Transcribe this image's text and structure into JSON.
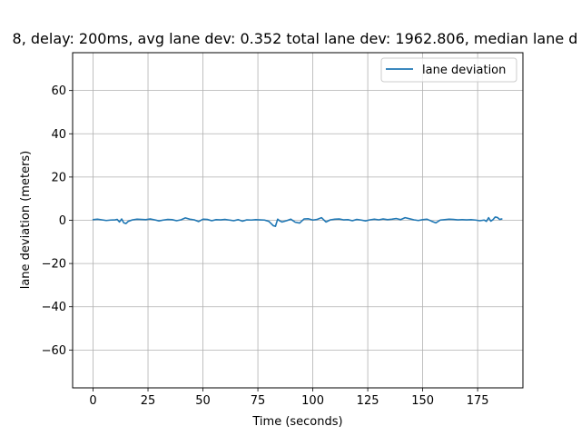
{
  "chart_data": {
    "type": "line",
    "title": "8, delay: 200ms, avg lane dev: 0.352 total lane dev: 1962.806, median lane d",
    "xlabel": "Time (seconds)",
    "ylabel": "lane deviation (meters)",
    "xlim": [
      -9.3,
      195.6
    ],
    "ylim": [
      -77.5,
      77.5
    ],
    "xticks": [
      0,
      25,
      50,
      75,
      100,
      125,
      150,
      175
    ],
    "yticks": [
      -60,
      -40,
      -20,
      0,
      20,
      40,
      60
    ],
    "xtick_labels": [
      "0",
      "25",
      "50",
      "75",
      "100",
      "125",
      "150",
      "175"
    ],
    "ytick_labels": [
      "−60",
      "−40",
      "−20",
      "0",
      "20",
      "40",
      "60"
    ],
    "grid": true,
    "legend_position": "top-right",
    "line_color": "#1f77b4",
    "series": [
      {
        "name": "lane deviation",
        "x": [
          0,
          2,
          4,
          6,
          8,
          10,
          11,
          12,
          13,
          14,
          15,
          16,
          18,
          20,
          22,
          24,
          26,
          28,
          30,
          32,
          34,
          36,
          38,
          40,
          42,
          44,
          46,
          48,
          50,
          52,
          54,
          56,
          58,
          60,
          62,
          64,
          66,
          68,
          70,
          72,
          74,
          76,
          78,
          80,
          82,
          83,
          84,
          85,
          86,
          88,
          90,
          92,
          94,
          96,
          98,
          100,
          102,
          104,
          106,
          108,
          110,
          112,
          114,
          116,
          118,
          120,
          122,
          124,
          126,
          128,
          130,
          132,
          134,
          136,
          138,
          140,
          142,
          144,
          146,
          148,
          150,
          152,
          154,
          156,
          158,
          160,
          162,
          164,
          166,
          168,
          170,
          172,
          174,
          176,
          178,
          179,
          180,
          181,
          182,
          183,
          184,
          185,
          186
        ],
        "y": [
          0.3,
          0.5,
          0.2,
          -0.1,
          0.1,
          0.2,
          0.4,
          -0.8,
          0.6,
          -1.2,
          -1.5,
          -0.5,
          0.2,
          0.5,
          0.4,
          0.3,
          0.6,
          0.2,
          -0.3,
          0.1,
          0.4,
          0.3,
          -0.2,
          0.2,
          1.1,
          0.5,
          0.2,
          -0.6,
          0.5,
          0.4,
          -0.2,
          0.3,
          0.2,
          0.4,
          0.1,
          -0.2,
          0.3,
          -0.4,
          0.2,
          0.1,
          0.3,
          0.2,
          0.1,
          -0.5,
          -2.5,
          -2.8,
          0.5,
          -0.3,
          -0.8,
          -0.2,
          0.5,
          -0.9,
          -1.3,
          0.6,
          0.7,
          0.1,
          0.4,
          1.2,
          -0.8,
          0.2,
          0.5,
          0.6,
          0.2,
          0.3,
          -0.2,
          0.4,
          0.1,
          -0.3,
          0.2,
          0.5,
          0.2,
          0.6,
          0.3,
          0.5,
          0.8,
          0.3,
          1.2,
          0.7,
          0.2,
          -0.1,
          0.3,
          0.5,
          -0.4,
          -1.2,
          0.1,
          0.3,
          0.5,
          0.4,
          0.2,
          0.3,
          0.2,
          0.3,
          0.1,
          -0.2,
          0.1,
          -0.5,
          1.2,
          -0.4,
          0.3,
          1.5,
          1.3,
          0.4,
          0.6
        ]
      }
    ]
  }
}
